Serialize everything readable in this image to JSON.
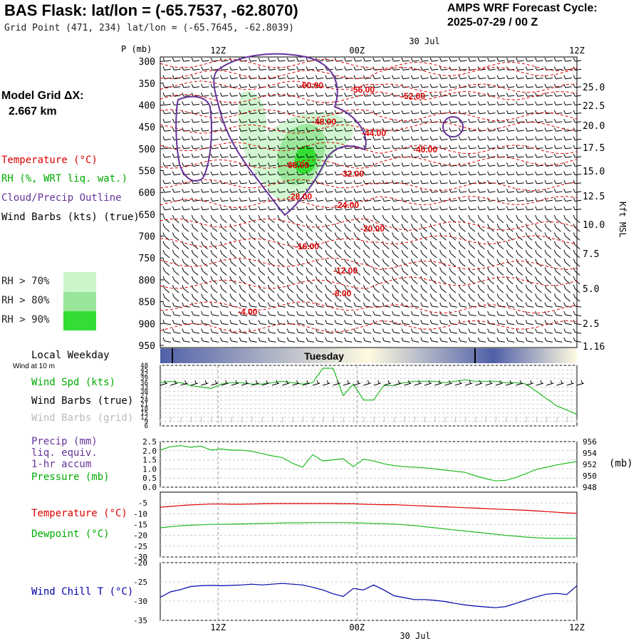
{
  "header": {
    "title": "BAS Flask:  lat/lon = (-65.7537, -62.8070)",
    "grid_point": "Grid Point (471, 234) lat/lon = (-65.7645, -62.8039)",
    "forecast_title": "AMPS WRF Forecast Cycle:",
    "forecast_cycle": "2025-07-29 / 00  Z"
  },
  "sidebar": {
    "model_grid_label": "Model Grid ΔX:",
    "model_grid_value": "2.667 km",
    "legend_temperature": "Temperature (°C)",
    "legend_rh": "RH (%, WRT liq. wat.)",
    "legend_cloud": "Cloud/Precip Outline",
    "legend_wind": "Wind Barbs (kts) (true)",
    "rh_70": "RH > 70%",
    "rh_80": "RH > 80%",
    "rh_90": "RH > 90%",
    "local_weekday": "Local Weekday",
    "wind_at_10m": "Wind at 10 m",
    "wind_spd": "Wind Spd (kts)",
    "wind_barbs_true": "Wind Barbs (true)",
    "wind_barbs_grid": "Wind Barbs (grid)",
    "precip": "Precip (mm)",
    "liq_equiv": "liq. equiv.",
    "accum": "1-hr accum",
    "pressure": "Pressure (mb)",
    "temperature2": "Temperature (°C)",
    "dewpoint": "Dewpoint (°C)",
    "wind_chill": "Wind Chill T (°C)",
    "p_axis_label": "P (mb)",
    "kft_label": "Kft MSL",
    "pressure_unit": "(mb)"
  },
  "colors": {
    "temperature": "#dd0000",
    "rh": "#00aa00",
    "cloud": "#663399",
    "wind_chill": "#0000aa",
    "rh70": "#ccf5cc",
    "rh80": "#99e699",
    "rh90": "#33dd33",
    "weekday_dark": "#5060a8",
    "weekday_light": "#fffbe0"
  },
  "chart_data": [
    {
      "type": "area",
      "panel": "time-height cross section",
      "ylabel": "P (mb)",
      "y_ticks": [
        "300",
        "350",
        "400",
        "450",
        "500",
        "550",
        "600",
        "650",
        "700",
        "750",
        "800",
        "850",
        "900",
        "950"
      ],
      "right_ticks": [
        "25.0",
        "22.5",
        "20.0",
        "17.5",
        "15.0",
        "12.5",
        "10.0",
        "7.5",
        "5.0",
        "2.5",
        "1.16"
      ],
      "top_ticks": [
        "12Z",
        "00Z",
        "12Z"
      ],
      "top_date": "30 Jul",
      "temperature_labels": [
        "-60.00",
        "-56.00",
        "-52.00",
        "-48.00",
        "-44.00",
        "-40.00",
        "-36.00",
        "-32.00",
        "-28.00",
        "-24.00",
        "-20.00",
        "-16.00",
        "-12.00",
        "-8.00",
        "-4.00"
      ],
      "weekday": "Tuesday"
    },
    {
      "type": "line",
      "panel": "wind speed",
      "ylabel": "Wind Spd (kts)",
      "y_ticks": [
        "48",
        "45",
        "42",
        "39",
        "36",
        "33",
        "30",
        "27",
        "24",
        "21",
        "18",
        "15",
        "12",
        "9",
        "6"
      ],
      "ylim": [
        6,
        48
      ],
      "series": [
        {
          "values": [
            36,
            37,
            36,
            34,
            33,
            32,
            35,
            36,
            36,
            35,
            35,
            36,
            37,
            36,
            35,
            36,
            46,
            46,
            27,
            35,
            24,
            24,
            34,
            34,
            36,
            37,
            37,
            37,
            36,
            37,
            38,
            37,
            37,
            37,
            36,
            36,
            35,
            30,
            25,
            20,
            17,
            14
          ]
        }
      ]
    },
    {
      "type": "line",
      "panel": "precip / pressure",
      "left_ticks": [
        "2.5",
        "2.0",
        "1.5",
        "1.0",
        "0.5",
        "0.0"
      ],
      "right_ticks": [
        "956",
        "954",
        "952",
        "950",
        "948"
      ],
      "ylim_left": [
        0,
        2.5
      ],
      "ylim_right": [
        948,
        956
      ],
      "series": [
        {
          "values": [
            954.5,
            955.1,
            955.3,
            955.0,
            955.2,
            954.5,
            954.7,
            954.5,
            954.5,
            954.3,
            953.9,
            953.5,
            953.2,
            952.2,
            951.5,
            953.7,
            952.6,
            952.8,
            953.0,
            951.6,
            952.9,
            952.6,
            952.1,
            951.8,
            951.6,
            951.5,
            951.4,
            951.2,
            951.0,
            950.8,
            950.6,
            950.0,
            949.5,
            949.1,
            949.2,
            949.7,
            950.4,
            951.1,
            951.5,
            951.9,
            952.2,
            952.5
          ]
        }
      ]
    },
    {
      "type": "line",
      "panel": "temperature / dewpoint",
      "y_ticks": [
        "-5",
        "-10",
        "-15",
        "-20",
        "-25",
        "-30"
      ],
      "ylim": [
        -30,
        0
      ],
      "series": [
        {
          "values": [
            -7.0,
            -6.6,
            -6.2,
            -5.9,
            -5.7,
            -5.5,
            -5.5,
            -5.6,
            -5.6,
            -5.5,
            -5.4,
            -5.3,
            -5.3,
            -5.3,
            -5.3,
            -5.3,
            -5.3,
            -5.3,
            -5.4,
            -5.4,
            -5.6,
            -5.7,
            -5.8,
            -5.8,
            -6.0,
            -6.2,
            -6.4,
            -6.6,
            -6.8,
            -7.0,
            -7.2,
            -7.4,
            -7.6,
            -7.8,
            -8.0,
            -8.2,
            -8.4,
            -8.7,
            -9.0,
            -9.3,
            -9.6,
            -9.8
          ]
        },
        {
          "values": [
            -16.5,
            -16.0,
            -15.6,
            -15.3,
            -15.1,
            -14.9,
            -14.9,
            -14.8,
            -14.7,
            -14.6,
            -14.5,
            -14.4,
            -14.3,
            -14.2,
            -14.2,
            -14.1,
            -14.1,
            -14.1,
            -14.1,
            -14.2,
            -14.3,
            -14.5,
            -14.6,
            -14.8,
            -15.1,
            -15.5,
            -16.0,
            -16.5,
            -17.0,
            -17.5,
            -18.0,
            -18.5,
            -19.0,
            -19.5,
            -20.0,
            -20.4,
            -20.8,
            -21.1,
            -21.3,
            -21.4,
            -21.4,
            -21.4
          ]
        }
      ]
    },
    {
      "type": "line",
      "panel": "wind chill",
      "y_ticks": [
        "-20",
        "-25",
        "-30",
        "-35"
      ],
      "ylim": [
        -35,
        -20
      ],
      "series": [
        {
          "values": [
            -29.0,
            -27.6,
            -27.0,
            -26.2,
            -26.0,
            -25.9,
            -26.0,
            -25.9,
            -25.8,
            -25.6,
            -25.8,
            -25.6,
            -25.4,
            -25.6,
            -25.8,
            -26.4,
            -27.1,
            -28.1,
            -28.8,
            -26.7,
            -27.1,
            -25.8,
            -27.1,
            -28.6,
            -29.1,
            -29.6,
            -29.6,
            -29.8,
            -30.1,
            -30.6,
            -31.0,
            -31.3,
            -31.5,
            -31.7,
            -31.4,
            -30.6,
            -29.7,
            -28.9,
            -28.2,
            -28.0,
            -28.3,
            -26.0
          ]
        }
      ],
      "x_ticks": [
        "12Z",
        "00Z",
        "12Z"
      ],
      "x_date": "30 Jul"
    }
  ]
}
